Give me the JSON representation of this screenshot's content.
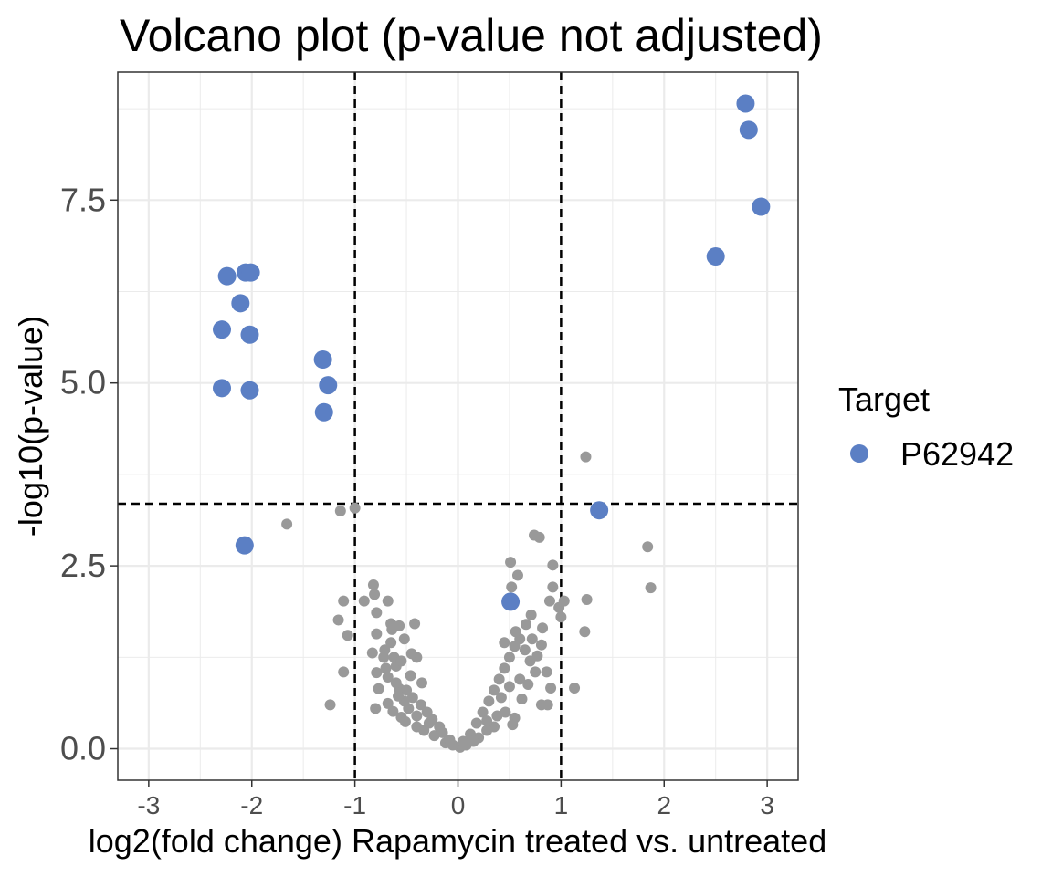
{
  "chart_data": {
    "type": "scatter",
    "title": "Volcano plot (p-value not adjusted)",
    "xlabel": "log2(fold change) Rapamycin treated vs. untreated",
    "ylabel": "-log10(p-value)",
    "xlim": [
      -3.3,
      3.3
    ],
    "ylim": [
      -0.43,
      9.25
    ],
    "x_ticks": [
      -3,
      -2,
      -1,
      0,
      1,
      2,
      3
    ],
    "x_tick_labels": [
      "-3",
      "-2",
      "-1",
      "0",
      "1",
      "2",
      "3"
    ],
    "y_ticks": [
      0,
      2.5,
      5,
      7.5
    ],
    "y_tick_labels": [
      "0.0",
      "2.5",
      "5.0",
      "7.5"
    ],
    "grid": true,
    "vlines": [
      -1,
      1
    ],
    "hline": 3.35,
    "threshold_line_style": "dashed black",
    "legend": {
      "title": "Target",
      "placement": "right",
      "entries": [
        {
          "label": "P62942",
          "color": "#5b7fc4"
        }
      ]
    },
    "colors": {
      "target": "#5b7fc4",
      "background": "#999999",
      "grid": "#ebebeb",
      "panel_border": "#333333"
    },
    "target_points": [
      {
        "x": 2.79,
        "y": 8.82
      },
      {
        "x": 2.82,
        "y": 8.46
      },
      {
        "x": 2.94,
        "y": 7.41
      },
      {
        "x": 2.5,
        "y": 6.73
      },
      {
        "x": -2.24,
        "y": 6.46
      },
      {
        "x": -2.06,
        "y": 6.51
      },
      {
        "x": -2.01,
        "y": 6.51
      },
      {
        "x": -2.11,
        "y": 6.09
      },
      {
        "x": -2.29,
        "y": 5.73
      },
      {
        "x": -2.02,
        "y": 5.66
      },
      {
        "x": -2.29,
        "y": 4.93
      },
      {
        "x": -2.02,
        "y": 4.9
      },
      {
        "x": -1.31,
        "y": 5.32
      },
      {
        "x": -1.26,
        "y": 4.97
      },
      {
        "x": -1.3,
        "y": 4.6
      },
      {
        "x": 1.37,
        "y": 3.26
      },
      {
        "x": -2.07,
        "y": 2.78
      },
      {
        "x": 0.51,
        "y": 2.01
      }
    ],
    "background_points": [
      {
        "x": 1.24,
        "y": 3.99
      },
      {
        "x": -1.0,
        "y": 3.29
      },
      {
        "x": -1.14,
        "y": 3.25
      },
      {
        "x": -1.66,
        "y": 3.07
      },
      {
        "x": 0.74,
        "y": 2.92
      },
      {
        "x": 0.79,
        "y": 2.89
      },
      {
        "x": 1.84,
        "y": 2.76
      },
      {
        "x": 0.51,
        "y": 2.55
      },
      {
        "x": 0.92,
        "y": 2.51
      },
      {
        "x": 0.58,
        "y": 2.37
      },
      {
        "x": -0.82,
        "y": 2.24
      },
      {
        "x": 1.87,
        "y": 2.2
      },
      {
        "x": 0.52,
        "y": 2.21
      },
      {
        "x": 0.92,
        "y": 2.21
      },
      {
        "x": -0.81,
        "y": 2.11
      },
      {
        "x": -0.68,
        "y": 2.02
      },
      {
        "x": -1.11,
        "y": 2.02
      },
      {
        "x": 1.25,
        "y": 2.04
      },
      {
        "x": -0.91,
        "y": 2.02
      },
      {
        "x": 0.89,
        "y": 2.02
      },
      {
        "x": 1.03,
        "y": 2.02
      },
      {
        "x": 0.98,
        "y": 1.93
      },
      {
        "x": 0.71,
        "y": 1.83
      },
      {
        "x": 1.0,
        "y": 1.8
      },
      {
        "x": -0.79,
        "y": 1.86
      },
      {
        "x": -1.16,
        "y": 1.76
      },
      {
        "x": -0.65,
        "y": 1.71
      },
      {
        "x": -0.42,
        "y": 1.71
      },
      {
        "x": -0.64,
        "y": 1.63
      },
      {
        "x": -0.57,
        "y": 1.68
      },
      {
        "x": -1.07,
        "y": 1.55
      },
      {
        "x": -0.79,
        "y": 1.57
      },
      {
        "x": 0.82,
        "y": 1.65
      },
      {
        "x": 1.23,
        "y": 1.6
      },
      {
        "x": 0.81,
        "y": 1.42
      },
      {
        "x": -0.71,
        "y": 1.35
      },
      {
        "x": -0.83,
        "y": 1.31
      },
      {
        "x": -0.62,
        "y": 1.25
      },
      {
        "x": 0.77,
        "y": 1.27
      },
      {
        "x": -1.11,
        "y": 1.05
      },
      {
        "x": -0.4,
        "y": 1.25
      },
      {
        "x": -0.6,
        "y": 1.13
      },
      {
        "x": 0.86,
        "y": 1.05
      },
      {
        "x": -0.79,
        "y": 1.04
      },
      {
        "x": -0.68,
        "y": 0.98
      },
      {
        "x": 0.9,
        "y": 0.83
      },
      {
        "x": 1.13,
        "y": 0.83
      },
      {
        "x": -0.57,
        "y": 0.82
      },
      {
        "x": 0.68,
        "y": 0.88
      },
      {
        "x": -0.77,
        "y": 0.82
      },
      {
        "x": -0.68,
        "y": 0.62
      },
      {
        "x": -0.52,
        "y": 0.65
      },
      {
        "x": 0.62,
        "y": 0.68
      },
      {
        "x": 0.81,
        "y": 0.6
      },
      {
        "x": 0.87,
        "y": 0.6
      },
      {
        "x": -1.24,
        "y": 0.6
      },
      {
        "x": -0.8,
        "y": 0.55
      },
      {
        "x": -0.63,
        "y": 0.51
      },
      {
        "x": -0.55,
        "y": 0.43
      },
      {
        "x": 0.46,
        "y": 0.5
      },
      {
        "x": 0.55,
        "y": 0.42
      },
      {
        "x": -0.51,
        "y": 0.37
      },
      {
        "x": 0.53,
        "y": 0.33
      },
      {
        "x": -0.4,
        "y": 0.3
      },
      {
        "x": 0.35,
        "y": 0.3
      },
      {
        "x": -0.33,
        "y": 0.25
      },
      {
        "x": 0.28,
        "y": 0.25
      },
      {
        "x": -0.23,
        "y": 0.18
      },
      {
        "x": 0.2,
        "y": 0.15
      },
      {
        "x": -0.12,
        "y": 0.08
      },
      {
        "x": 0.08,
        "y": 0.05
      },
      {
        "x": 0.02,
        "y": 0.02
      },
      {
        "x": -0.7,
        "y": 1.1
      },
      {
        "x": -0.55,
        "y": 1.2
      },
      {
        "x": -0.46,
        "y": 1.0
      },
      {
        "x": -0.6,
        "y": 0.9
      },
      {
        "x": -0.5,
        "y": 0.8
      },
      {
        "x": -0.44,
        "y": 0.7
      },
      {
        "x": -0.36,
        "y": 0.6
      },
      {
        "x": -0.3,
        "y": 0.5
      },
      {
        "x": -0.25,
        "y": 0.4
      },
      {
        "x": -0.18,
        "y": 0.3
      },
      {
        "x": -0.15,
        "y": 0.22
      },
      {
        "x": -0.08,
        "y": 0.12
      },
      {
        "x": 0.05,
        "y": 0.1
      },
      {
        "x": 0.12,
        "y": 0.2
      },
      {
        "x": 0.18,
        "y": 0.35
      },
      {
        "x": 0.24,
        "y": 0.5
      },
      {
        "x": 0.3,
        "y": 0.65
      },
      {
        "x": 0.35,
        "y": 0.8
      },
      {
        "x": 0.4,
        "y": 0.95
      },
      {
        "x": 0.45,
        "y": 1.1
      },
      {
        "x": 0.5,
        "y": 1.25
      },
      {
        "x": 0.55,
        "y": 1.4
      },
      {
        "x": 0.6,
        "y": 1.5
      },
      {
        "x": 0.65,
        "y": 1.35
      },
      {
        "x": 0.7,
        "y": 1.2
      },
      {
        "x": 0.75,
        "y": 1.05
      },
      {
        "x": 0.6,
        "y": 0.95
      },
      {
        "x": 0.5,
        "y": 0.85
      },
      {
        "x": 0.42,
        "y": 0.7
      },
      {
        "x": -0.48,
        "y": 0.55
      },
      {
        "x": -0.4,
        "y": 0.45
      },
      {
        "x": -0.35,
        "y": 0.9
      },
      {
        "x": -0.65,
        "y": 1.45
      },
      {
        "x": -0.52,
        "y": 1.5
      },
      {
        "x": 0.56,
        "y": 1.6
      },
      {
        "x": 0.66,
        "y": 1.7
      },
      {
        "x": -0.58,
        "y": 0.72
      },
      {
        "x": 0.38,
        "y": 0.45
      },
      {
        "x": 0.28,
        "y": 0.38
      },
      {
        "x": -0.28,
        "y": 0.35
      },
      {
        "x": 0.15,
        "y": 0.1
      },
      {
        "x": -0.05,
        "y": 0.05
      },
      {
        "x": 0.45,
        "y": 1.45
      },
      {
        "x": 0.72,
        "y": 1.5
      },
      {
        "x": -0.45,
        "y": 1.3
      },
      {
        "x": -0.72,
        "y": 1.25
      }
    ]
  }
}
